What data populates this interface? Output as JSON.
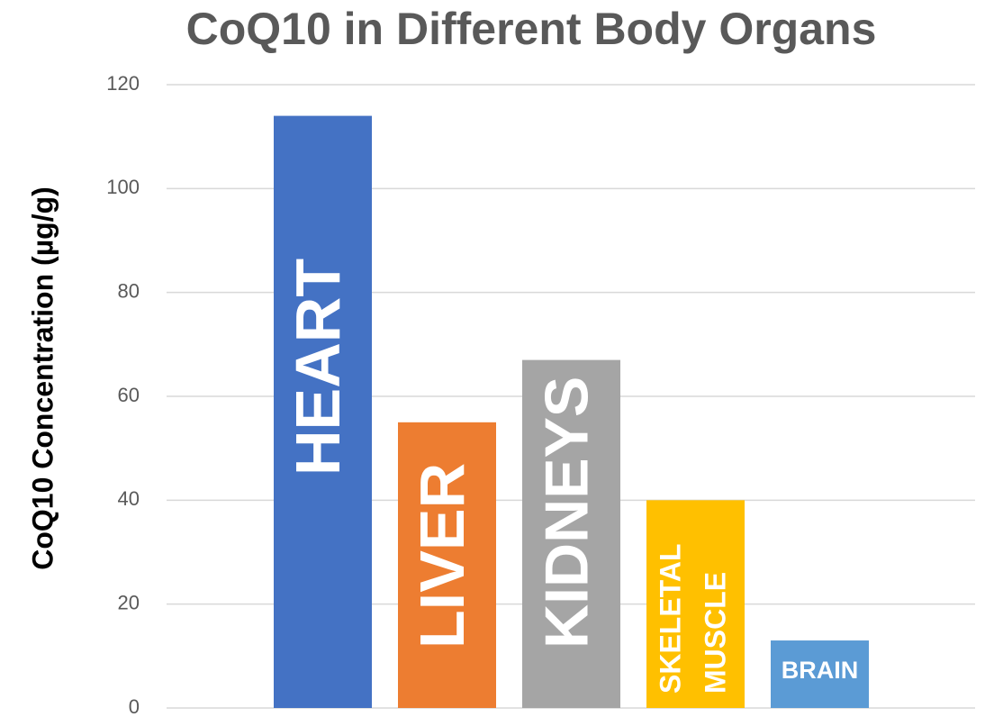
{
  "chart_data": {
    "type": "bar",
    "title": "CoQ10 in Different Body Organs",
    "y_label": "CoQ10 Concentration (µg/g)",
    "categories": [
      "HEART",
      "LIVER",
      "KIDNEYS",
      "SKELETAL MUSCLE",
      "BRAIN"
    ],
    "values": [
      114,
      55,
      67,
      40,
      13
    ],
    "colors": [
      "#4472c4",
      "#ed7d31",
      "#a5a5a5",
      "#ffc000",
      "#5b9bd5"
    ],
    "ylim": [
      0,
      120
    ],
    "yticks": [
      0,
      20,
      40,
      60,
      80,
      100,
      120
    ],
    "grid": true
  }
}
